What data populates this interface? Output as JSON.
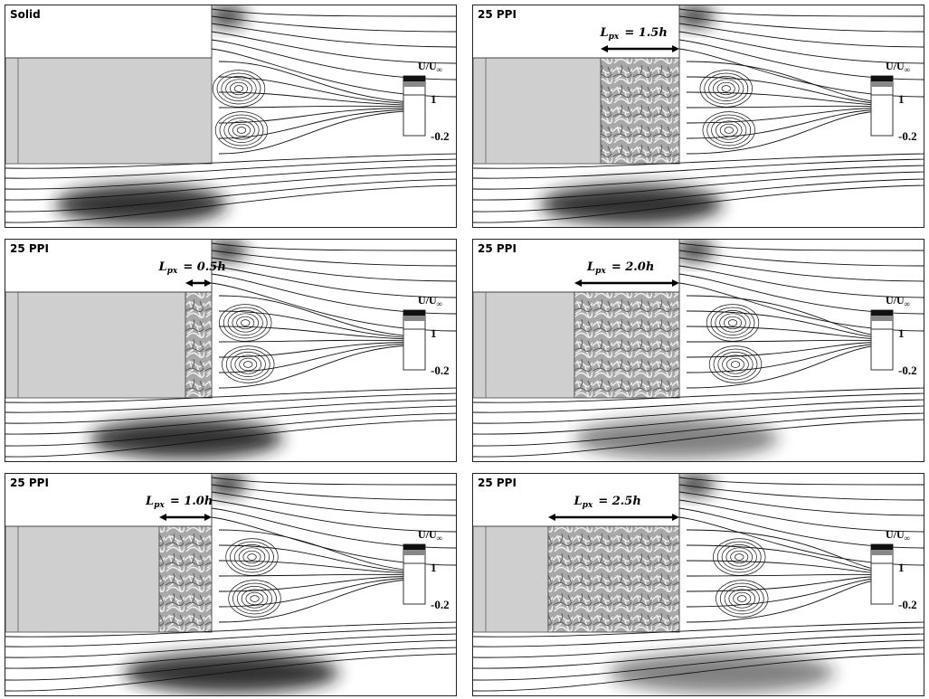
{
  "panels": [
    {
      "title": "Solid",
      "lpx_text": "",
      "porous_len": 0
    },
    {
      "title": "25 PPI",
      "lpx_text": "= 1.5h",
      "porous_len": 1.5
    },
    {
      "title": "25 PPI",
      "lpx_text": "= 0.5h",
      "porous_len": 0.5
    },
    {
      "title": "25 PPI",
      "lpx_text": "= 2.0h",
      "porous_len": 2.0
    },
    {
      "title": "25 PPI",
      "lpx_text": "= 1.0h",
      "porous_len": 1.0
    },
    {
      "title": "25 PPI",
      "lpx_text": "= 2.5h",
      "porous_len": 2.5
    }
  ],
  "label_symbol": "L",
  "label_subscript": "px",
  "colorbar": {
    "title": "U/U",
    "title_subscript": "∞",
    "max_label": "1",
    "min_label": "-0.2"
  },
  "colors": {
    "solid_block": "#cfcfcf",
    "porous_base": "#a8a8a8",
    "streamline": "#111111",
    "shadow": "#1a1a1a"
  }
}
